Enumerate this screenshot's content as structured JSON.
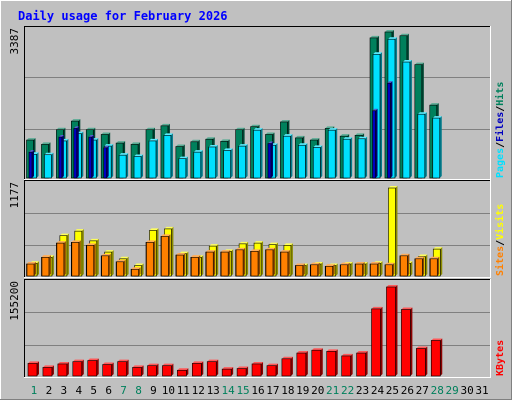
{
  "chart_data": {
    "type": "bar",
    "title": "Daily usage for February 2026",
    "categories": [
      "1",
      "2",
      "3",
      "4",
      "5",
      "6",
      "7",
      "8",
      "9",
      "10",
      "11",
      "12",
      "13",
      "14",
      "15",
      "16",
      "17",
      "18",
      "19",
      "20",
      "21",
      "22",
      "23",
      "24",
      "25",
      "26",
      "27",
      "28",
      "29",
      "30",
      "31"
    ],
    "weekend_days": [
      "1",
      "7",
      "8",
      "14",
      "15",
      "21",
      "22",
      "28",
      "29"
    ],
    "panels": {
      "top": {
        "max_label": "3387",
        "ylim": [
          0,
          3387
        ],
        "legend": {
          "pages": "Pages",
          "files": "Files",
          "hits": "Hits",
          "sep": "/"
        },
        "series": [
          {
            "name": "Hits",
            "color": "#00805c",
            "values": [
              880,
              780,
              1120,
              1320,
              1120,
              1010,
              810,
              780,
              1120,
              1210,
              730,
              840,
              900,
              850,
              1120,
              1190,
              1010,
              1300,
              930,
              880,
              1150,
              970,
              990,
              3250,
              3387,
              3300,
              2630,
              1690,
              0,
              0,
              0
            ]
          },
          {
            "name": "Files",
            "color": "#00e0ff",
            "values": [
              550,
              540,
              860,
              1030,
              880,
              740,
              530,
              500,
              860,
              990,
              450,
              600,
              720,
              640,
              740,
              1110,
              760,
              970,
              760,
              710,
              1110,
              900,
              910,
              2870,
              3220,
              2690,
              1480,
              1390,
              0,
              0,
              0
            ]
          },
          {
            "name": "Pages",
            "color": "#0000c0",
            "values": [
              600,
              0,
              950,
              1150,
              950,
              700,
              0,
              0,
              0,
              0,
              0,
              0,
              0,
              0,
              0,
              0,
              800,
              0,
              0,
              0,
              0,
              0,
              0,
              1560,
              2200,
              0,
              0,
              0,
              0,
              0,
              0
            ]
          }
        ]
      },
      "middle": {
        "max_label": "1177",
        "ylim": [
          0,
          1177
        ],
        "legend": {
          "sites": "Sites",
          "visits": "Visits",
          "sep": "/"
        },
        "series": [
          {
            "name": "Visits",
            "color": "#ffff00",
            "values": [
              170,
              250,
              540,
              600,
              470,
              320,
              230,
              140,
              610,
              630,
              300,
              250,
              400,
              330,
              430,
              440,
              420,
              410,
              140,
              160,
              140,
              160,
              160,
              170,
              1177,
              170,
              260,
              360,
              0,
              0,
              0
            ]
          },
          {
            "name": "Sites",
            "color": "#ff8000",
            "values": [
              160,
              250,
              440,
              450,
              410,
              270,
              190,
              90,
              450,
              530,
              280,
              250,
              320,
              320,
              350,
              330,
              350,
              320,
              140,
              150,
              130,
              150,
              160,
              160,
              150,
              270,
              230,
              230,
              0,
              0,
              0
            ]
          }
        ]
      },
      "bottom": {
        "max_label": "155200",
        "ylim": [
          0,
          155200
        ],
        "legend": {
          "kbytes": "KBytes"
        },
        "series": [
          {
            "name": "KBytes",
            "color": "#ff0000",
            "values": [
              22000,
              15000,
              21000,
              25000,
              27000,
              20000,
              25000,
              15000,
              18000,
              18000,
              10000,
              22000,
              25000,
              12000,
              13000,
              21000,
              18000,
              30000,
              40000,
              45000,
              43000,
              35000,
              40000,
              117000,
              155200,
              116000,
              48000,
              62000,
              0,
              0,
              0
            ]
          }
        ]
      }
    }
  }
}
